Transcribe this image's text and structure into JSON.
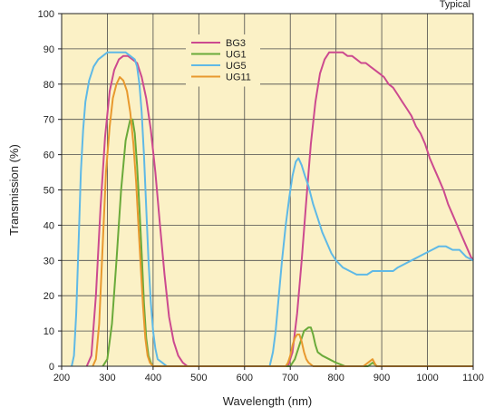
{
  "chart_data": {
    "type": "line",
    "note": "Typical",
    "xlabel": "Wavelength (nm)",
    "ylabel": "Transmission (%)",
    "xlim": [
      200,
      1100
    ],
    "ylim": [
      0,
      100
    ],
    "xticks": [
      200,
      300,
      400,
      500,
      600,
      700,
      800,
      900,
      1000,
      1100
    ],
    "yticks": [
      0,
      10,
      20,
      30,
      40,
      50,
      60,
      70,
      80,
      90,
      100
    ],
    "background": "#fbf1c6",
    "grid": true,
    "legend_position": "top-center",
    "series": [
      {
        "name": "BG3",
        "color": "#cc4a8f",
        "points": [
          [
            255,
            0
          ],
          [
            265,
            3
          ],
          [
            275,
            20
          ],
          [
            285,
            45
          ],
          [
            295,
            65
          ],
          [
            305,
            78
          ],
          [
            315,
            84
          ],
          [
            325,
            87
          ],
          [
            335,
            88
          ],
          [
            345,
            88
          ],
          [
            355,
            87
          ],
          [
            365,
            86
          ],
          [
            375,
            82
          ],
          [
            385,
            76
          ],
          [
            395,
            67
          ],
          [
            405,
            55
          ],
          [
            415,
            40
          ],
          [
            425,
            26
          ],
          [
            435,
            14
          ],
          [
            445,
            7
          ],
          [
            455,
            3
          ],
          [
            465,
            1
          ],
          [
            475,
            0
          ],
          [
            500,
            0
          ],
          [
            600,
            0
          ],
          [
            680,
            0
          ],
          [
            695,
            0
          ],
          [
            705,
            4
          ],
          [
            715,
            15
          ],
          [
            725,
            30
          ],
          [
            735,
            47
          ],
          [
            745,
            63
          ],
          [
            755,
            75
          ],
          [
            765,
            83
          ],
          [
            775,
            87
          ],
          [
            785,
            89
          ],
          [
            795,
            89
          ],
          [
            805,
            89
          ],
          [
            815,
            89
          ],
          [
            825,
            88
          ],
          [
            835,
            88
          ],
          [
            845,
            87
          ],
          [
            855,
            86
          ],
          [
            865,
            86
          ],
          [
            875,
            85
          ],
          [
            885,
            84
          ],
          [
            895,
            83
          ],
          [
            905,
            82
          ],
          [
            915,
            80
          ],
          [
            925,
            79
          ],
          [
            935,
            77
          ],
          [
            945,
            75
          ],
          [
            955,
            73
          ],
          [
            965,
            71
          ],
          [
            975,
            68
          ],
          [
            985,
            66
          ],
          [
            995,
            63
          ],
          [
            1005,
            59
          ],
          [
            1015,
            56
          ],
          [
            1025,
            53
          ],
          [
            1035,
            50
          ],
          [
            1045,
            46
          ],
          [
            1055,
            43
          ],
          [
            1065,
            40
          ],
          [
            1075,
            37
          ],
          [
            1085,
            34
          ],
          [
            1095,
            31
          ],
          [
            1100,
            30
          ]
        ]
      },
      {
        "name": "UG1",
        "color": "#6aaa3a",
        "points": [
          [
            290,
            0
          ],
          [
            300,
            2
          ],
          [
            310,
            12
          ],
          [
            320,
            30
          ],
          [
            330,
            50
          ],
          [
            340,
            64
          ],
          [
            350,
            70
          ],
          [
            355,
            70
          ],
          [
            360,
            66
          ],
          [
            365,
            57
          ],
          [
            370,
            45
          ],
          [
            375,
            32
          ],
          [
            380,
            18
          ],
          [
            385,
            8
          ],
          [
            390,
            3
          ],
          [
            395,
            1
          ],
          [
            400,
            0
          ],
          [
            500,
            0
          ],
          [
            650,
            0
          ],
          [
            700,
            0
          ],
          [
            710,
            2
          ],
          [
            720,
            6
          ],
          [
            730,
            10
          ],
          [
            740,
            11
          ],
          [
            745,
            11
          ],
          [
            750,
            9
          ],
          [
            755,
            6
          ],
          [
            760,
            4
          ],
          [
            770,
            3
          ],
          [
            785,
            2
          ],
          [
            800,
            1
          ],
          [
            820,
            0
          ],
          [
            870,
            0
          ],
          [
            880,
            1
          ],
          [
            890,
            0
          ],
          [
            950,
            0
          ],
          [
            1100,
            0
          ]
        ]
      },
      {
        "name": "UG5",
        "color": "#5fb9e6",
        "points": [
          [
            222,
            0
          ],
          [
            227,
            3
          ],
          [
            232,
            15
          ],
          [
            237,
            35
          ],
          [
            242,
            55
          ],
          [
            247,
            67
          ],
          [
            252,
            75
          ],
          [
            260,
            81
          ],
          [
            270,
            85
          ],
          [
            280,
            87
          ],
          [
            290,
            88
          ],
          [
            300,
            89
          ],
          [
            310,
            89
          ],
          [
            320,
            89
          ],
          [
            330,
            89
          ],
          [
            340,
            89
          ],
          [
            350,
            88
          ],
          [
            360,
            87
          ],
          [
            365,
            85
          ],
          [
            370,
            80
          ],
          [
            375,
            72
          ],
          [
            380,
            60
          ],
          [
            385,
            45
          ],
          [
            390,
            30
          ],
          [
            395,
            18
          ],
          [
            400,
            10
          ],
          [
            405,
            5
          ],
          [
            410,
            2
          ],
          [
            420,
            1
          ],
          [
            430,
            0
          ],
          [
            500,
            0
          ],
          [
            600,
            0
          ],
          [
            655,
            0
          ],
          [
            662,
            4
          ],
          [
            668,
            10
          ],
          [
            675,
            20
          ],
          [
            682,
            30
          ],
          [
            690,
            40
          ],
          [
            698,
            48
          ],
          [
            705,
            54
          ],
          [
            712,
            58
          ],
          [
            718,
            59
          ],
          [
            725,
            57
          ],
          [
            732,
            54
          ],
          [
            740,
            51
          ],
          [
            750,
            46
          ],
          [
            760,
            42
          ],
          [
            770,
            38
          ],
          [
            780,
            35
          ],
          [
            790,
            32
          ],
          [
            800,
            30
          ],
          [
            815,
            28
          ],
          [
            830,
            27
          ],
          [
            845,
            26
          ],
          [
            858,
            26
          ],
          [
            868,
            26
          ],
          [
            880,
            27
          ],
          [
            895,
            27
          ],
          [
            910,
            27
          ],
          [
            925,
            27
          ],
          [
            935,
            28
          ],
          [
            950,
            29
          ],
          [
            965,
            30
          ],
          [
            980,
            31
          ],
          [
            995,
            32
          ],
          [
            1010,
            33
          ],
          [
            1025,
            34
          ],
          [
            1040,
            34
          ],
          [
            1055,
            33
          ],
          [
            1070,
            33
          ],
          [
            1085,
            31
          ],
          [
            1100,
            30
          ]
        ]
      },
      {
        "name": "UG11",
        "color": "#e8992e",
        "points": [
          [
            268,
            0
          ],
          [
            275,
            2
          ],
          [
            282,
            12
          ],
          [
            290,
            35
          ],
          [
            297,
            55
          ],
          [
            305,
            68
          ],
          [
            312,
            76
          ],
          [
            320,
            80
          ],
          [
            327,
            82
          ],
          [
            335,
            81
          ],
          [
            343,
            78
          ],
          [
            350,
            72
          ],
          [
            357,
            63
          ],
          [
            363,
            52
          ],
          [
            368,
            40
          ],
          [
            373,
            28
          ],
          [
            378,
            17
          ],
          [
            383,
            8
          ],
          [
            388,
            3
          ],
          [
            393,
            1
          ],
          [
            400,
            0
          ],
          [
            500,
            0
          ],
          [
            650,
            0
          ],
          [
            690,
            0
          ],
          [
            695,
            1
          ],
          [
            700,
            3
          ],
          [
            705,
            6
          ],
          [
            710,
            8
          ],
          [
            715,
            9
          ],
          [
            720,
            9
          ],
          [
            725,
            7
          ],
          [
            730,
            4
          ],
          [
            735,
            2
          ],
          [
            740,
            1
          ],
          [
            750,
            0
          ],
          [
            860,
            0
          ],
          [
            870,
            1
          ],
          [
            880,
            2
          ],
          [
            888,
            0
          ],
          [
            950,
            0
          ],
          [
            1100,
            0
          ]
        ]
      }
    ]
  }
}
